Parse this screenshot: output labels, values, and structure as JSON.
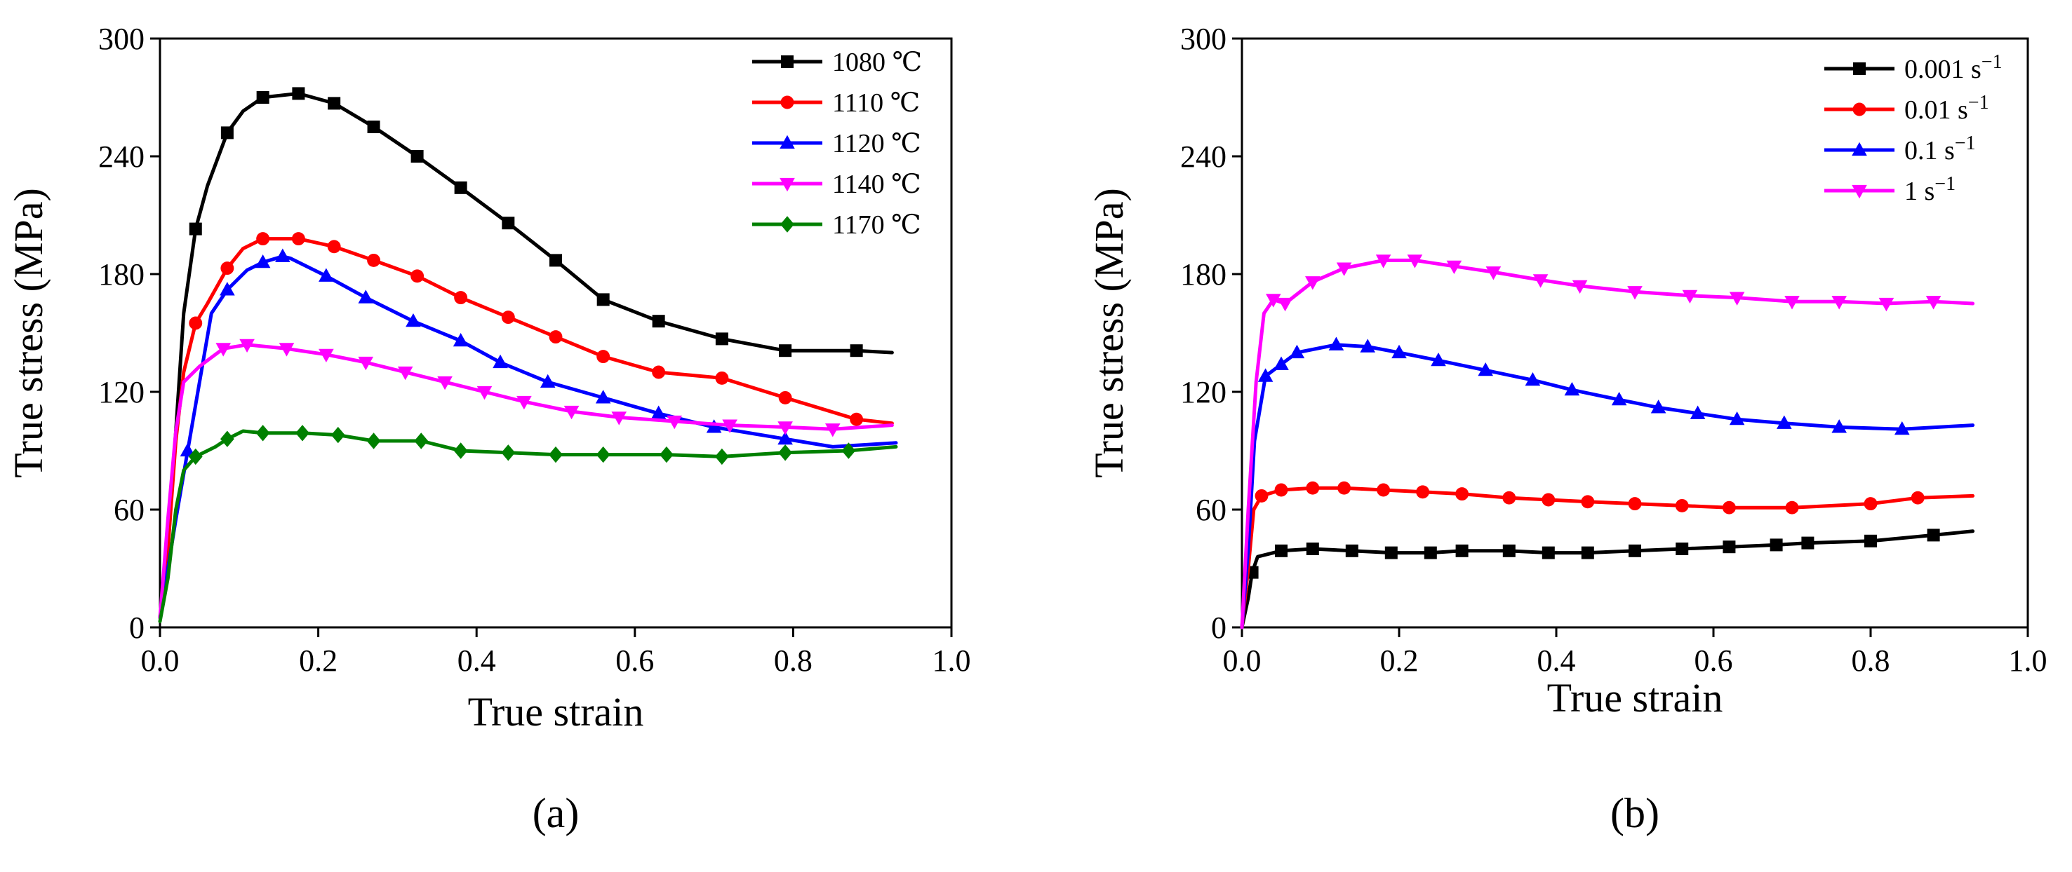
{
  "chart_data": [
    {
      "type": "line",
      "panel_label": "(a)",
      "xlabel": "True strain",
      "ylabel": "True stress (MPa)",
      "xlim": [
        0.0,
        1.0
      ],
      "ylim": [
        0,
        300
      ],
      "xticks": [
        0.0,
        0.2,
        0.4,
        0.6,
        0.8,
        1.0
      ],
      "xtick_labels": [
        "0.0",
        "0.2",
        "0.4",
        "0.6",
        "0.8",
        "1.0"
      ],
      "yticks": [
        0,
        60,
        120,
        180,
        240,
        300
      ],
      "ytick_labels": [
        "0",
        "60",
        "120",
        "180",
        "240",
        "300"
      ],
      "legend_position": "top-right",
      "series": [
        {
          "name": "1080 ℃",
          "color": "#000000",
          "marker": "square",
          "x": [
            0.0,
            0.01,
            0.02,
            0.03,
            0.045,
            0.06,
            0.085,
            0.105,
            0.13,
            0.175,
            0.22,
            0.27,
            0.325,
            0.38,
            0.44,
            0.5,
            0.56,
            0.63,
            0.71,
            0.79,
            0.88,
            0.925
          ],
          "y": [
            5,
            40,
            100,
            160,
            203,
            225,
            252,
            263,
            270,
            272,
            267,
            255,
            240,
            224,
            206,
            187,
            167,
            156,
            147,
            141,
            141,
            140
          ],
          "marker_indices": [
            4,
            6,
            8,
            9,
            10,
            11,
            12,
            13,
            14,
            15,
            16,
            17,
            18,
            19,
            20
          ]
        },
        {
          "name": "1110 ℃",
          "color": "#ff0000",
          "marker": "circle",
          "x": [
            0.0,
            0.01,
            0.02,
            0.03,
            0.045,
            0.06,
            0.085,
            0.105,
            0.13,
            0.175,
            0.22,
            0.27,
            0.325,
            0.38,
            0.44,
            0.5,
            0.56,
            0.63,
            0.71,
            0.79,
            0.88,
            0.925
          ],
          "y": [
            5,
            40,
            95,
            130,
            155,
            165,
            183,
            193,
            198,
            198,
            194,
            187,
            179,
            168,
            158,
            148,
            138,
            130,
            127,
            117,
            106,
            104
          ],
          "marker_indices": [
            4,
            6,
            8,
            9,
            10,
            11,
            12,
            13,
            14,
            15,
            16,
            17,
            18,
            19,
            20
          ]
        },
        {
          "name": "1120 ℃",
          "color": "#0000ff",
          "marker": "triangle-up",
          "x": [
            0.0,
            0.01,
            0.02,
            0.035,
            0.05,
            0.065,
            0.085,
            0.11,
            0.13,
            0.155,
            0.165,
            0.21,
            0.26,
            0.32,
            0.38,
            0.43,
            0.49,
            0.56,
            0.63,
            0.7,
            0.79,
            0.85,
            0.93
          ],
          "y": [
            5,
            30,
            55,
            90,
            125,
            160,
            172,
            182,
            186,
            189,
            188,
            179,
            168,
            156,
            146,
            135,
            125,
            117,
            109,
            102,
            96,
            92,
            94
          ],
          "marker_indices": [
            3,
            6,
            8,
            9,
            11,
            12,
            13,
            14,
            15,
            16,
            17,
            18,
            19,
            20
          ]
        },
        {
          "name": "1140 ℃",
          "color": "#ff00ff",
          "marker": "triangle-down",
          "x": [
            0.0,
            0.01,
            0.02,
            0.03,
            0.05,
            0.08,
            0.11,
            0.16,
            0.21,
            0.26,
            0.31,
            0.36,
            0.41,
            0.46,
            0.52,
            0.58,
            0.65,
            0.72,
            0.79,
            0.85,
            0.925
          ],
          "y": [
            5,
            55,
            100,
            125,
            133,
            142,
            144,
            142,
            139,
            135,
            130,
            125,
            120,
            115,
            110,
            107,
            105,
            103,
            102,
            101,
            103
          ],
          "marker_indices": [
            5,
            6,
            7,
            8,
            9,
            10,
            11,
            12,
            13,
            14,
            15,
            16,
            17,
            18,
            19
          ]
        },
        {
          "name": "1170 ℃",
          "color": "#008000",
          "marker": "diamond",
          "x": [
            0.0,
            0.01,
            0.02,
            0.03,
            0.045,
            0.07,
            0.085,
            0.105,
            0.13,
            0.18,
            0.225,
            0.27,
            0.33,
            0.38,
            0.44,
            0.5,
            0.56,
            0.64,
            0.71,
            0.79,
            0.87,
            0.93
          ],
          "y": [
            3,
            25,
            60,
            80,
            87,
            92,
            96,
            100,
            99,
            99,
            98,
            95,
            95,
            90,
            89,
            88,
            88,
            88,
            87,
            89,
            90,
            92
          ],
          "marker_indices": [
            4,
            6,
            8,
            9,
            10,
            11,
            12,
            13,
            14,
            15,
            16,
            17,
            18,
            19,
            20
          ]
        }
      ]
    },
    {
      "type": "line",
      "panel_label": "(b)",
      "xlabel": "True strain",
      "ylabel": "True stress (MPa)",
      "xlim": [
        0.0,
        1.0
      ],
      "ylim": [
        0,
        300
      ],
      "xticks": [
        0.0,
        0.2,
        0.4,
        0.6,
        0.8,
        1.0
      ],
      "xtick_labels": [
        "0.0",
        "0.2",
        "0.4",
        "0.6",
        "0.8",
        "1.0"
      ],
      "yticks": [
        0,
        60,
        120,
        180,
        240,
        300
      ],
      "ytick_labels": [
        "0",
        "60",
        "120",
        "180",
        "240",
        "300"
      ],
      "legend_position": "top-right",
      "series": [
        {
          "name": "0.001 s",
          "sup": "−1",
          "color": "#000000",
          "marker": "square",
          "x": [
            0.0,
            0.008,
            0.013,
            0.02,
            0.05,
            0.09,
            0.14,
            0.19,
            0.24,
            0.28,
            0.34,
            0.39,
            0.44,
            0.5,
            0.56,
            0.62,
            0.68,
            0.72,
            0.8,
            0.88,
            0.93
          ],
          "y": [
            0,
            15,
            28,
            36,
            39,
            40,
            39,
            38,
            38,
            39,
            39,
            38,
            38,
            39,
            40,
            41,
            42,
            43,
            44,
            47,
            49
          ],
          "marker_indices": [
            2,
            4,
            5,
            6,
            7,
            8,
            9,
            10,
            11,
            12,
            13,
            14,
            15,
            16,
            17,
            18,
            19
          ]
        },
        {
          "name": "0.01 s",
          "sup": "−1",
          "color": "#ff0000",
          "marker": "circle",
          "x": [
            0.0,
            0.008,
            0.015,
            0.025,
            0.05,
            0.09,
            0.13,
            0.18,
            0.23,
            0.28,
            0.34,
            0.39,
            0.44,
            0.5,
            0.56,
            0.62,
            0.7,
            0.8,
            0.86,
            0.93
          ],
          "y": [
            0,
            30,
            60,
            67,
            70,
            71,
            71,
            70,
            69,
            68,
            66,
            65,
            64,
            63,
            62,
            61,
            61,
            63,
            66,
            67
          ],
          "marker_indices": [
            3,
            4,
            5,
            6,
            7,
            8,
            9,
            10,
            11,
            12,
            13,
            14,
            15,
            16,
            17,
            18
          ]
        },
        {
          "name": "0.1 s",
          "sup": "−1",
          "color": "#0000ff",
          "marker": "triangle-up",
          "x": [
            0.0,
            0.008,
            0.016,
            0.03,
            0.05,
            0.07,
            0.12,
            0.16,
            0.2,
            0.25,
            0.31,
            0.37,
            0.42,
            0.48,
            0.53,
            0.58,
            0.63,
            0.69,
            0.76,
            0.84,
            0.93
          ],
          "y": [
            0,
            40,
            95,
            128,
            134,
            140,
            144,
            143,
            140,
            136,
            131,
            126,
            121,
            116,
            112,
            109,
            106,
            104,
            102,
            101,
            103
          ],
          "marker_indices": [
            3,
            4,
            5,
            6,
            7,
            8,
            9,
            10,
            11,
            12,
            13,
            14,
            15,
            16,
            17,
            18,
            19
          ]
        },
        {
          "name": "1 s",
          "sup": "−1",
          "color": "#ff00ff",
          "marker": "triangle-down",
          "x": [
            0.0,
            0.008,
            0.018,
            0.028,
            0.04,
            0.055,
            0.09,
            0.13,
            0.18,
            0.22,
            0.27,
            0.32,
            0.38,
            0.43,
            0.5,
            0.57,
            0.63,
            0.7,
            0.76,
            0.82,
            0.88,
            0.93
          ],
          "y": [
            0,
            60,
            125,
            160,
            167,
            165,
            176,
            183,
            187,
            187,
            184,
            181,
            177,
            174,
            171,
            169,
            168,
            166,
            166,
            165,
            166,
            165
          ],
          "marker_indices": [
            4,
            5,
            6,
            7,
            8,
            9,
            10,
            11,
            12,
            13,
            14,
            15,
            16,
            17,
            18,
            19,
            20
          ]
        }
      ]
    }
  ]
}
